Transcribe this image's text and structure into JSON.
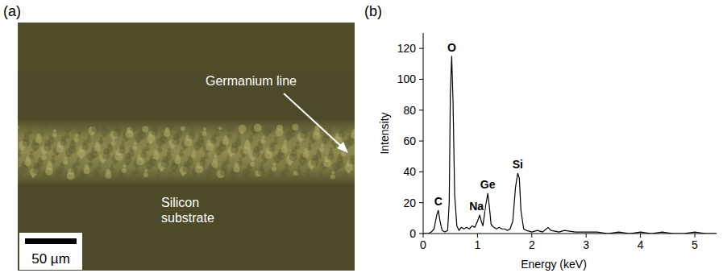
{
  "micrograph": {
    "letter": "(a)",
    "line_label": "Germanium line",
    "substrate_label": "Silicon substrate",
    "scale_bar": "50 µm"
  },
  "chart_data": {
    "letter": "(b)",
    "type": "line",
    "color": "#000000",
    "x_label": "Energy (keV)",
    "y_label": "Intensity",
    "xlim": [
      0,
      5.4
    ],
    "ylim": [
      0,
      130
    ],
    "xticks": [
      0,
      1,
      2,
      3,
      4,
      5
    ],
    "yticks": [
      0,
      20,
      40,
      60,
      80,
      100,
      120
    ],
    "x": [
      0,
      0.1,
      0.15,
      0.2,
      0.25,
      0.28,
      0.31,
      0.35,
      0.4,
      0.45,
      0.48,
      0.5,
      0.525,
      0.55,
      0.58,
      0.62,
      0.66,
      0.7,
      0.75,
      0.8,
      0.85,
      0.9,
      0.95,
      1.0,
      1.04,
      1.07,
      1.1,
      1.15,
      1.19,
      1.22,
      1.25,
      1.3,
      1.35,
      1.4,
      1.45,
      1.5,
      1.55,
      1.6,
      1.65,
      1.7,
      1.74,
      1.77,
      1.8,
      1.85,
      1.9,
      2.0,
      2.1,
      2.2,
      2.3,
      2.35,
      2.5,
      2.6,
      2.8,
      3.0,
      3.2,
      3.4,
      3.6,
      3.8,
      4.0,
      4.2,
      4.4,
      4.6,
      4.8,
      5.0,
      5.2,
      5.4
    ],
    "values": [
      0,
      0,
      1,
      3,
      12,
      15,
      8,
      2,
      1,
      2,
      20,
      90,
      115,
      85,
      25,
      5,
      2,
      4,
      3,
      4,
      3,
      5,
      4,
      8,
      12,
      8,
      5,
      18,
      26,
      17,
      6,
      4,
      3,
      4,
      3,
      3,
      2,
      3,
      8,
      30,
      39,
      36,
      15,
      3,
      2,
      1,
      2,
      1,
      4,
      2,
      1,
      2,
      1,
      1,
      1,
      0,
      1,
      0,
      1,
      0,
      1,
      0,
      0,
      1,
      0,
      0
    ],
    "annotations": [
      {
        "text": "C",
        "x": 0.28,
        "y": 15
      },
      {
        "text": "O",
        "x": 0.525,
        "y": 115
      },
      {
        "text": "Na",
        "x": 1.04,
        "y": 12
      },
      {
        "text": "Ge",
        "x": 1.19,
        "y": 26
      },
      {
        "text": "Si",
        "x": 1.74,
        "y": 39
      }
    ]
  }
}
